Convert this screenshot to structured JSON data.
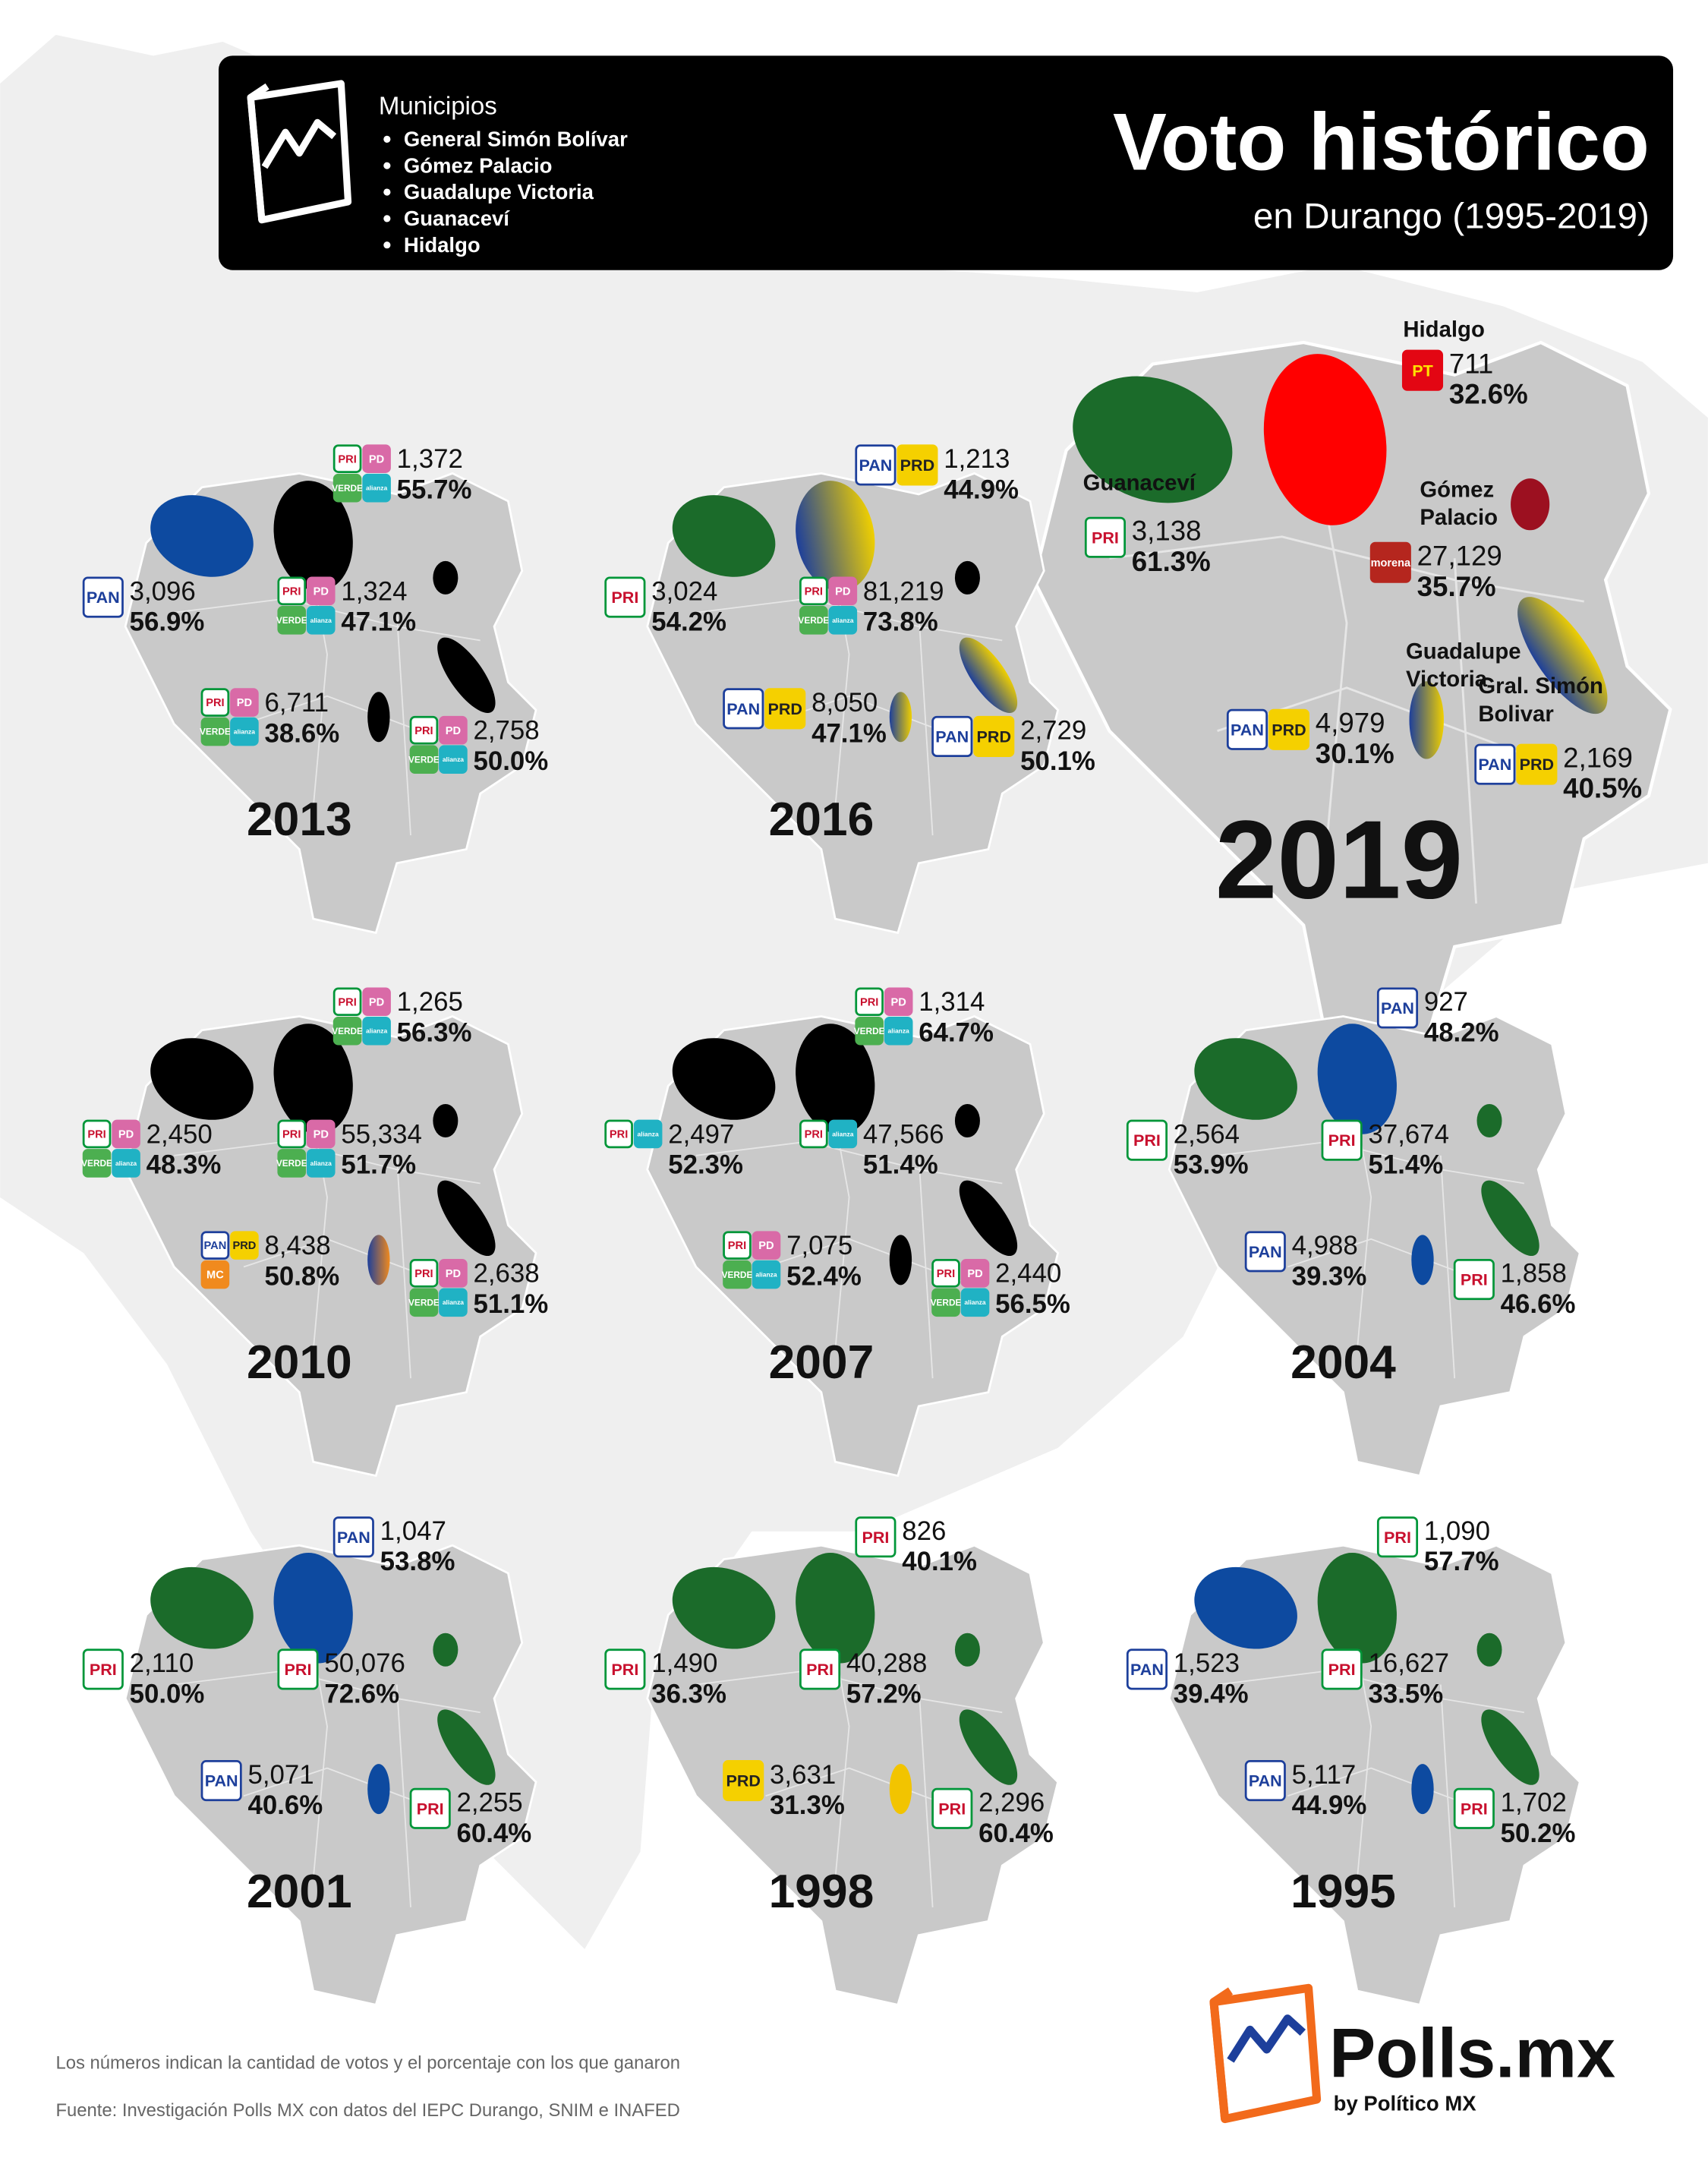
{
  "header": {
    "municipios_label": "Municipios",
    "municipios": [
      "General Simón Bolívar",
      "Gómez Palacio",
      "Guadalupe Victoria",
      "Guanaceví",
      "Hidalgo"
    ],
    "title": "Voto histórico",
    "subtitle": "en Durango (1995-2019)"
  },
  "party_styles": {
    "PAN": {
      "bg": "#ffffff",
      "fg": "#1d3f9b",
      "border": "#1d3f9b"
    },
    "PRI": {
      "bg": "#ffffff",
      "fg": "#c8102e",
      "border": "#009639"
    },
    "PRD": {
      "bg": "#f5d000",
      "fg": "#222222",
      "border": "#f5d000"
    },
    "PT": {
      "bg": "#e30613",
      "fg": "#ffe000",
      "border": "#e30613"
    },
    "morena": {
      "bg": "#b5261e",
      "fg": "#ffffff",
      "border": "#b5261e"
    },
    "PD": {
      "bg": "#d96aa7",
      "fg": "#ffffff",
      "border": "#d96aa7"
    },
    "VERDE": {
      "bg": "#4caf50",
      "fg": "#ffffff",
      "border": "#4caf50"
    },
    "alianza": {
      "bg": "#20b2c4",
      "fg": "#ffffff",
      "border": "#20b2c4"
    },
    "MC": {
      "bg": "#f08a1e",
      "fg": "#ffffff",
      "border": "#f08a1e"
    }
  },
  "maps": [
    {
      "year": "2019",
      "results": [
        {
          "name": [
            "Guanaceví"
          ],
          "votes": "3,138",
          "pct": "61.3%",
          "parties": [
            "PRI"
          ],
          "color": "#1b6b2a"
        },
        {
          "name": [
            "Hidalgo"
          ],
          "votes": "711",
          "pct": "32.6%",
          "parties": [
            "PT"
          ],
          "color": "#ff0000"
        },
        {
          "name": [
            "Gómez",
            "Palacio"
          ],
          "votes": "27,129",
          "pct": "35.7%",
          "parties": [
            "morena"
          ],
          "color": "#9c1020"
        },
        {
          "name": [
            "Gral. Simón",
            "Bolivar"
          ],
          "votes": "2,169",
          "pct": "40.5%",
          "parties": [
            "PAN",
            "PRD"
          ],
          "color": [
            "#1d3f9b",
            "#f0d000"
          ]
        },
        {
          "name": [
            "Guadalupe",
            "Victoria"
          ],
          "votes": "4,979",
          "pct": "30.1%",
          "parties": [
            "PAN",
            "PRD"
          ],
          "color": [
            "#1d3f9b",
            "#f0d000"
          ]
        }
      ]
    },
    {
      "year": "2013",
      "results": [
        {
          "votes": "3,096",
          "pct": "56.9%",
          "parties": [
            "PAN"
          ],
          "color": "#0d4aa0"
        },
        {
          "votes": "1,372",
          "pct": "55.7%",
          "parties": [
            "PRI",
            "PD",
            "VERDE",
            "alianza"
          ],
          "color": "#000000"
        },
        {
          "votes": "1,324",
          "pct": "47.1%",
          "parties": [
            "PRI",
            "PD",
            "VERDE",
            "alianza"
          ],
          "color": "#000000"
        },
        {
          "votes": "2,758",
          "pct": "50.0%",
          "parties": [
            "PRI",
            "PD",
            "VERDE",
            "alianza"
          ],
          "color": "#000000"
        },
        {
          "votes": "6,711",
          "pct": "38.6%",
          "parties": [
            "PRI",
            "PD",
            "VERDE",
            "alianza"
          ],
          "color": "#000000"
        }
      ]
    },
    {
      "year": "2016",
      "results": [
        {
          "votes": "3,024",
          "pct": "54.2%",
          "parties": [
            "PRI"
          ],
          "color": "#1b6b2a"
        },
        {
          "votes": "1,213",
          "pct": "44.9%",
          "parties": [
            "PAN",
            "PRD"
          ],
          "color": [
            "#1d3f9b",
            "#f0d000"
          ]
        },
        {
          "votes": "81,219",
          "pct": "73.8%",
          "parties": [
            "PRI",
            "PD",
            "VERDE",
            "alianza"
          ],
          "color": "#000000"
        },
        {
          "votes": "2,729",
          "pct": "50.1%",
          "parties": [
            "PAN",
            "PRD"
          ],
          "color": [
            "#1d3f9b",
            "#f0d000"
          ]
        },
        {
          "votes": "8,050",
          "pct": "47.1%",
          "parties": [
            "PAN",
            "PRD"
          ],
          "color": [
            "#1d3f9b",
            "#f0d000"
          ]
        }
      ]
    },
    {
      "year": "2010",
      "results": [
        {
          "votes": "2,450",
          "pct": "48.3%",
          "parties": [
            "PRI",
            "PD",
            "VERDE",
            "alianza"
          ],
          "color": "#000000"
        },
        {
          "votes": "1,265",
          "pct": "56.3%",
          "parties": [
            "PRI",
            "PD",
            "VERDE",
            "alianza"
          ],
          "color": "#000000"
        },
        {
          "votes": "55,334",
          "pct": "51.7%",
          "parties": [
            "PRI",
            "PD",
            "VERDE",
            "alianza"
          ],
          "color": "#000000"
        },
        {
          "votes": "2,638",
          "pct": "51.1%",
          "parties": [
            "PRI",
            "PD",
            "VERDE",
            "alianza"
          ],
          "color": "#000000"
        },
        {
          "votes": "8,438",
          "pct": "50.8%",
          "parties": [
            "PAN",
            "PRD",
            "MC"
          ],
          "color": [
            "#1d3f9b",
            "#f08a1e"
          ]
        }
      ]
    },
    {
      "year": "2007",
      "results": [
        {
          "votes": "2,497",
          "pct": "52.3%",
          "parties": [
            "PRI",
            "alianza"
          ],
          "color": "#000000"
        },
        {
          "votes": "1,314",
          "pct": "64.7%",
          "parties": [
            "PRI",
            "PD",
            "VERDE",
            "alianza"
          ],
          "color": "#000000"
        },
        {
          "votes": "47,566",
          "pct": "51.4%",
          "parties": [
            "PRI",
            "alianza"
          ],
          "color": "#000000"
        },
        {
          "votes": "2,440",
          "pct": "56.5%",
          "parties": [
            "PRI",
            "PD",
            "VERDE",
            "alianza"
          ],
          "color": "#000000"
        },
        {
          "votes": "7,075",
          "pct": "52.4%",
          "parties": [
            "PRI",
            "PD",
            "VERDE",
            "alianza"
          ],
          "color": "#000000"
        }
      ]
    },
    {
      "year": "2004",
      "results": [
        {
          "votes": "2,564",
          "pct": "53.9%",
          "parties": [
            "PRI"
          ],
          "color": "#1b6b2a"
        },
        {
          "votes": "927",
          "pct": "48.2%",
          "parties": [
            "PAN"
          ],
          "color": "#0d4aa0"
        },
        {
          "votes": "37,674",
          "pct": "51.4%",
          "parties": [
            "PRI"
          ],
          "color": "#1b6b2a"
        },
        {
          "votes": "1,858",
          "pct": "46.6%",
          "parties": [
            "PRI"
          ],
          "color": "#1b6b2a"
        },
        {
          "votes": "4,988",
          "pct": "39.3%",
          "parties": [
            "PAN"
          ],
          "color": "#0d4aa0"
        }
      ]
    },
    {
      "year": "2001",
      "results": [
        {
          "votes": "2,110",
          "pct": "50.0%",
          "parties": [
            "PRI"
          ],
          "color": "#1b6b2a"
        },
        {
          "votes": "1,047",
          "pct": "53.8%",
          "parties": [
            "PAN"
          ],
          "color": "#0d4aa0"
        },
        {
          "votes": "50,076",
          "pct": "72.6%",
          "parties": [
            "PRI"
          ],
          "color": "#1b6b2a"
        },
        {
          "votes": "2,255",
          "pct": "60.4%",
          "parties": [
            "PRI"
          ],
          "color": "#1b6b2a"
        },
        {
          "votes": "5,071",
          "pct": "40.6%",
          "parties": [
            "PAN"
          ],
          "color": "#0d4aa0"
        }
      ]
    },
    {
      "year": "1998",
      "results": [
        {
          "votes": "1,490",
          "pct": "36.3%",
          "parties": [
            "PRI"
          ],
          "color": "#1b6b2a"
        },
        {
          "votes": "826",
          "pct": "40.1%",
          "parties": [
            "PRI"
          ],
          "color": "#1b6b2a"
        },
        {
          "votes": "40,288",
          "pct": "57.2%",
          "parties": [
            "PRI"
          ],
          "color": "#1b6b2a"
        },
        {
          "votes": "2,296",
          "pct": "60.4%",
          "parties": [
            "PRI"
          ],
          "color": "#1b6b2a"
        },
        {
          "votes": "3,631",
          "pct": "31.3%",
          "parties": [
            "PRD"
          ],
          "color": "#f2c400"
        }
      ]
    },
    {
      "year": "1995",
      "results": [
        {
          "votes": "1,523",
          "pct": "39.4%",
          "parties": [
            "PAN"
          ],
          "color": "#0d4aa0"
        },
        {
          "votes": "1,090",
          "pct": "57.7%",
          "parties": [
            "PRI"
          ],
          "color": "#1b6b2a"
        },
        {
          "votes": "16,627",
          "pct": "33.5%",
          "parties": [
            "PRI"
          ],
          "color": "#1b6b2a"
        },
        {
          "votes": "1,702",
          "pct": "50.2%",
          "parties": [
            "PRI"
          ],
          "color": "#1b6b2a"
        },
        {
          "votes": "5,117",
          "pct": "44.9%",
          "parties": [
            "PAN"
          ],
          "color": "#0d4aa0"
        }
      ]
    }
  ],
  "footer": {
    "notes": [
      "Los números indican la cantidad de votos y el porcentaje con los que ganaron",
      "Fuente: Investigación Polls MX con datos del IEPC Durango, SNIM e INAFED"
    ]
  },
  "brand": {
    "name": "Polls.mx",
    "by": "by Político MX"
  }
}
